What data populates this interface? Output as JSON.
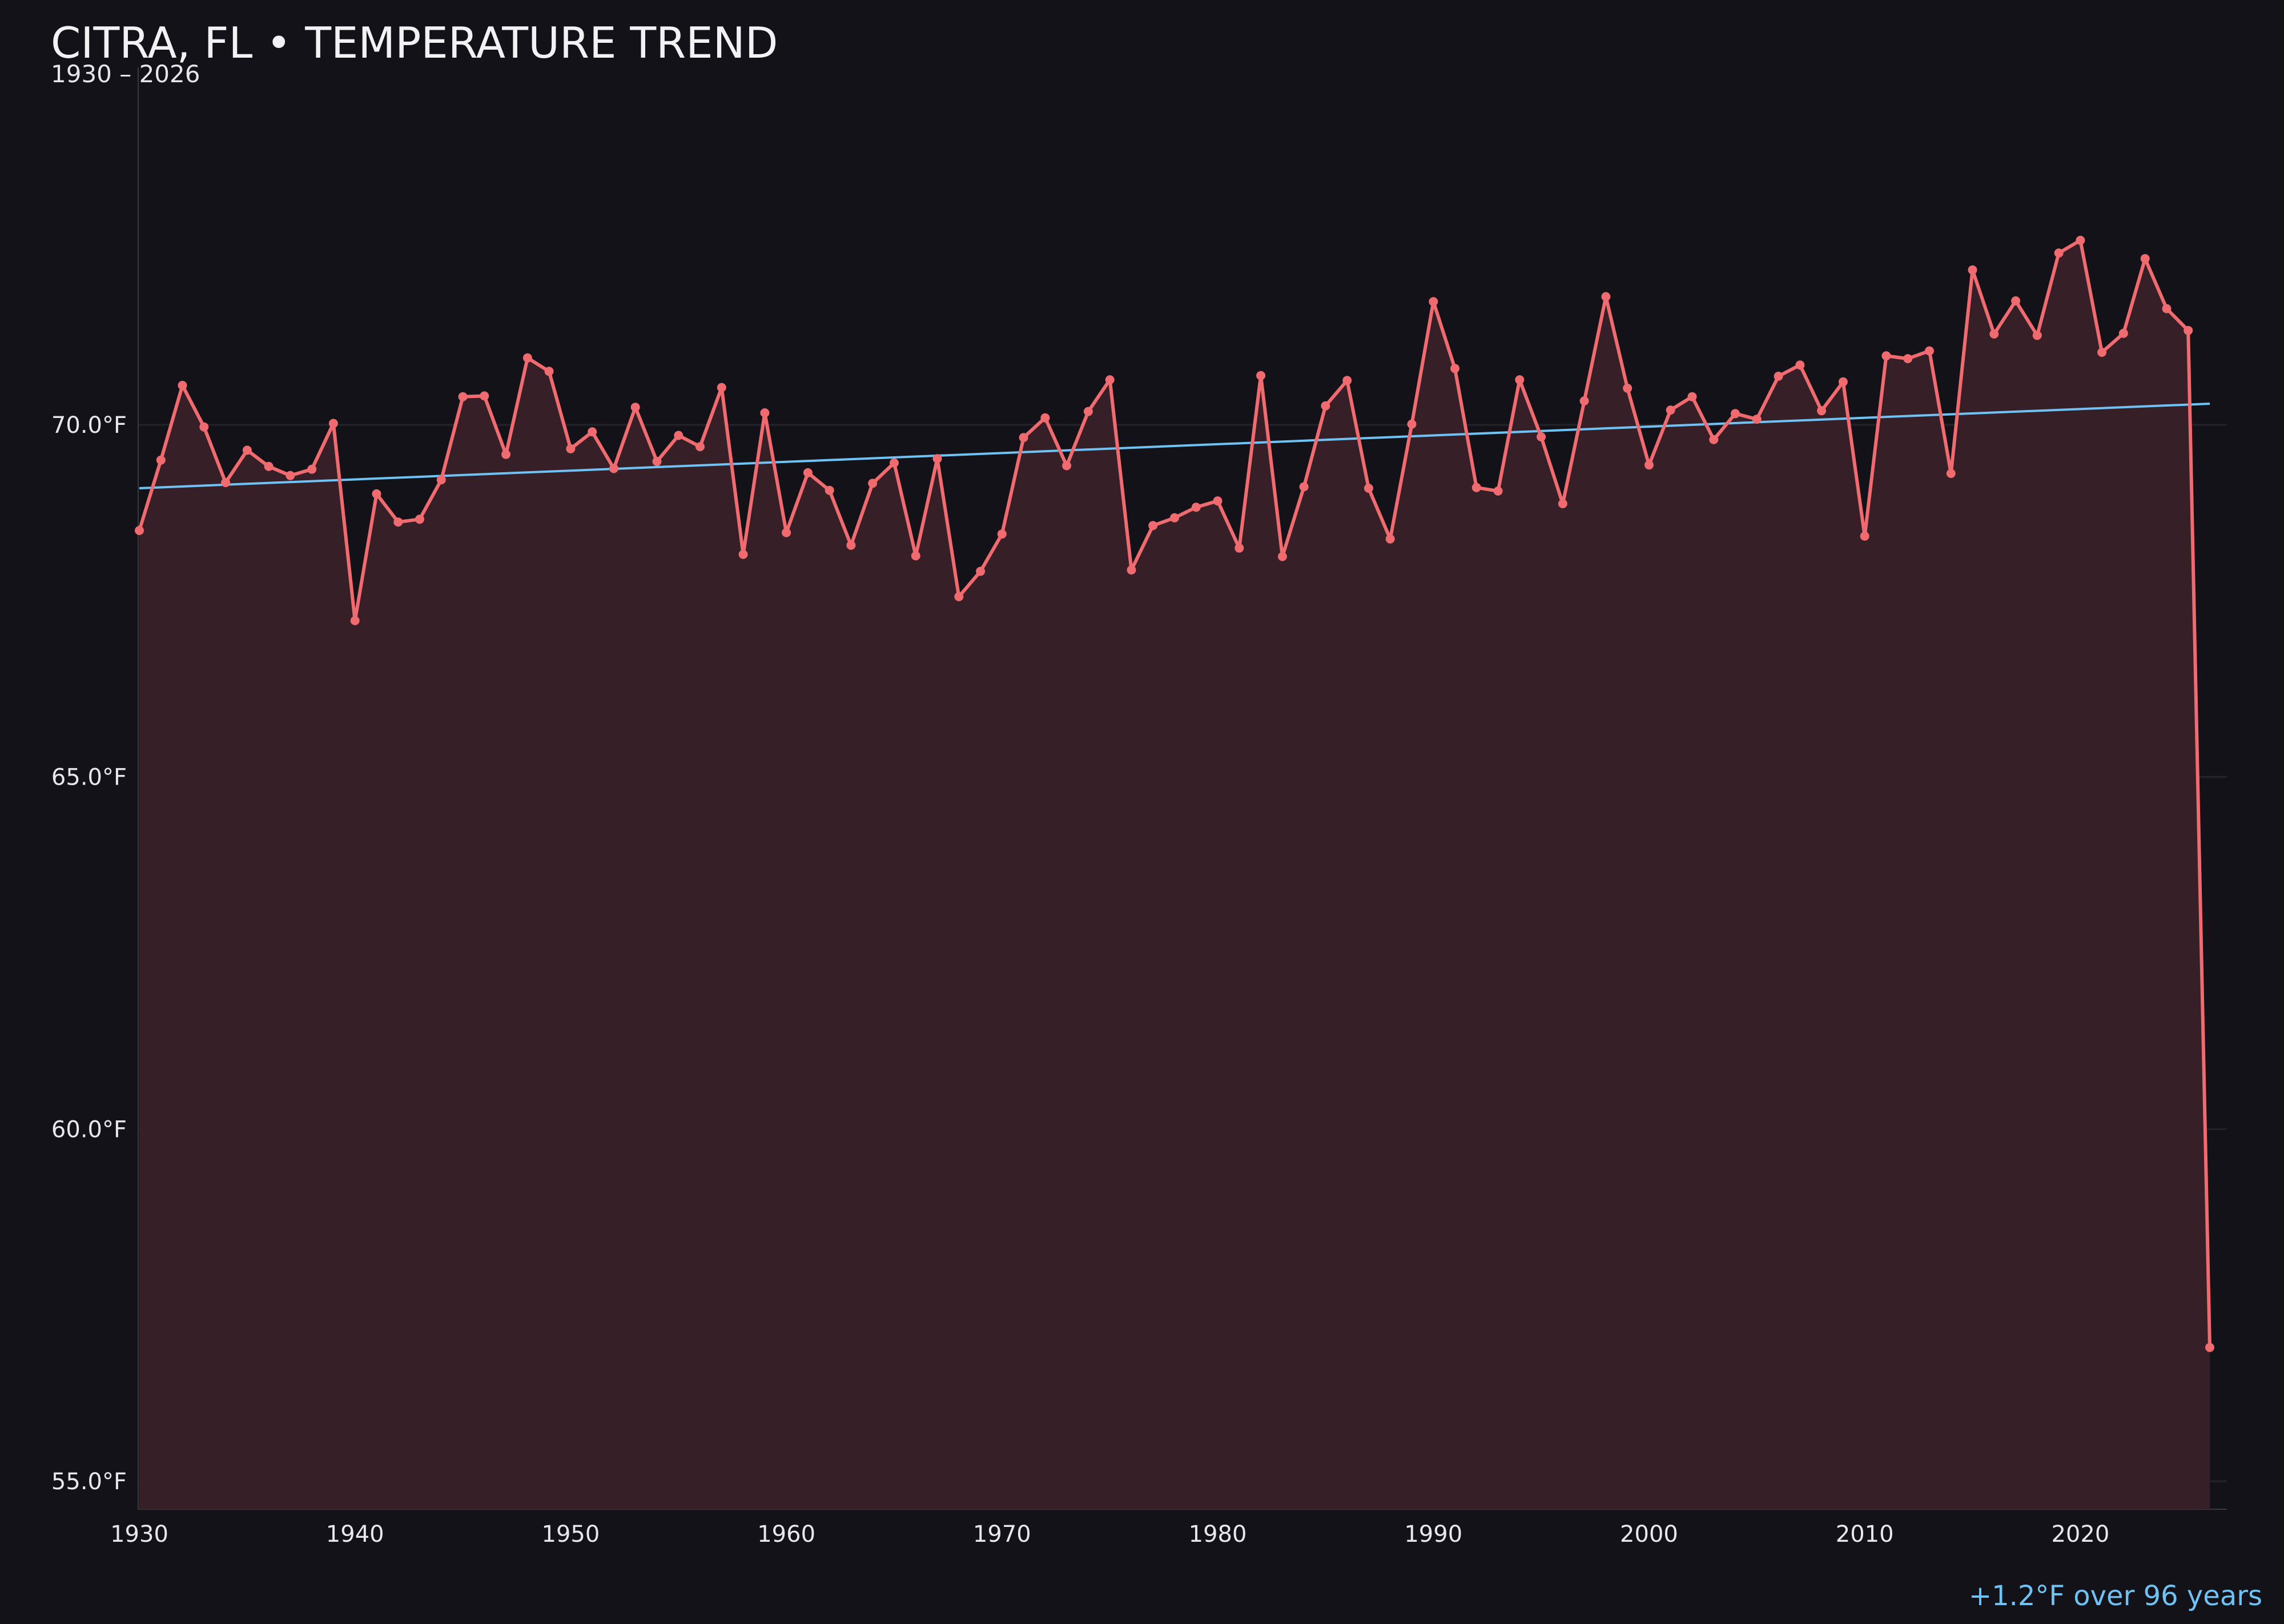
{
  "chart_data": {
    "type": "line",
    "title": "CITRA, FL • TEMPERATURE TREND",
    "subtitle": "1930 – 2026",
    "annotation": "+1.2°F over 96 years",
    "xlim": [
      1930,
      2027
    ],
    "ylim": [
      54.6,
      72.2
    ],
    "x_ticks": [
      1930,
      1940,
      1950,
      1960,
      1970,
      1980,
      1990,
      2000,
      2010,
      2020
    ],
    "y_ticks": [
      55,
      60,
      65,
      70
    ],
    "y_tick_labels": [
      "55.0°F",
      "60.0°F",
      "65.0°F",
      "70.0°F"
    ],
    "grid": "horizontal",
    "colors": {
      "background": "#131218",
      "line": "#f06b70",
      "area_fill": "#361f26",
      "trend": "#6ec3f4",
      "grid": "#24232a",
      "axis": "#3a3940",
      "text": "#ececf0"
    },
    "trend": {
      "x": [
        1930,
        2026
      ],
      "y": [
        69.1,
        70.3
      ]
    },
    "series": [
      {
        "x": [
          1930,
          1931,
          1932,
          1933,
          1934,
          1935,
          1936,
          1937,
          1938,
          1939,
          1940,
          1941,
          1942,
          1943,
          1944,
          1945,
          1946,
          1947,
          1948,
          1949,
          1950,
          1951,
          1952,
          1953,
          1954,
          1955,
          1956,
          1957,
          1958,
          1959,
          1960,
          1961,
          1962,
          1963,
          1964,
          1965,
          1966,
          1967,
          1968,
          1969,
          1970,
          1971,
          1972,
          1973,
          1974,
          1975,
          1976,
          1977,
          1978,
          1979,
          1980,
          1981,
          1982,
          1983,
          1984,
          1985,
          1986,
          1987,
          1988,
          1989,
          1990,
          1991,
          1992,
          1993,
          1994,
          1995,
          1996,
          1997,
          1998,
          1999,
          2000,
          2001,
          2002,
          2003,
          2004,
          2005,
          2006,
          2007,
          2008,
          2009,
          2010,
          2011,
          2012,
          2013,
          2014,
          2015,
          2016,
          2017,
          2018,
          2019,
          2020,
          2021,
          2022,
          2023,
          2024,
          2025,
          2026
        ],
        "values": [
          68.5,
          69.5,
          70.56,
          69.97,
          69.18,
          69.64,
          69.41,
          69.28,
          69.37,
          70.02,
          67.22,
          69.02,
          68.62,
          68.66,
          69.22,
          70.4,
          70.41,
          69.58,
          70.95,
          70.76,
          69.66,
          69.9,
          69.38,
          70.25,
          69.48,
          69.85,
          69.69,
          70.53,
          68.16,
          70.17,
          68.47,
          69.32,
          69.07,
          68.29,
          69.17,
          69.46,
          68.14,
          69.52,
          67.56,
          67.92,
          68.45,
          69.82,
          70.1,
          69.42,
          70.19,
          70.64,
          67.94,
          68.57,
          68.68,
          68.83,
          68.92,
          68.25,
          70.7,
          68.13,
          69.12,
          70.27,
          70.63,
          69.1,
          68.38,
          70.01,
          71.75,
          70.8,
          69.11,
          69.06,
          70.64,
          69.83,
          68.88,
          70.34,
          71.82,
          70.52,
          69.43,
          70.21,
          70.4,
          69.79,
          70.16,
          70.08,
          70.69,
          70.85,
          70.2,
          70.61,
          68.42,
          70.98,
          70.94,
          71.05,
          69.31,
          72.2,
          71.29,
          71.76,
          71.27,
          72.44,
          72.62,
          71.03,
          71.3,
          72.36,
          71.65,
          71.34,
          56.9
        ]
      }
    ]
  }
}
